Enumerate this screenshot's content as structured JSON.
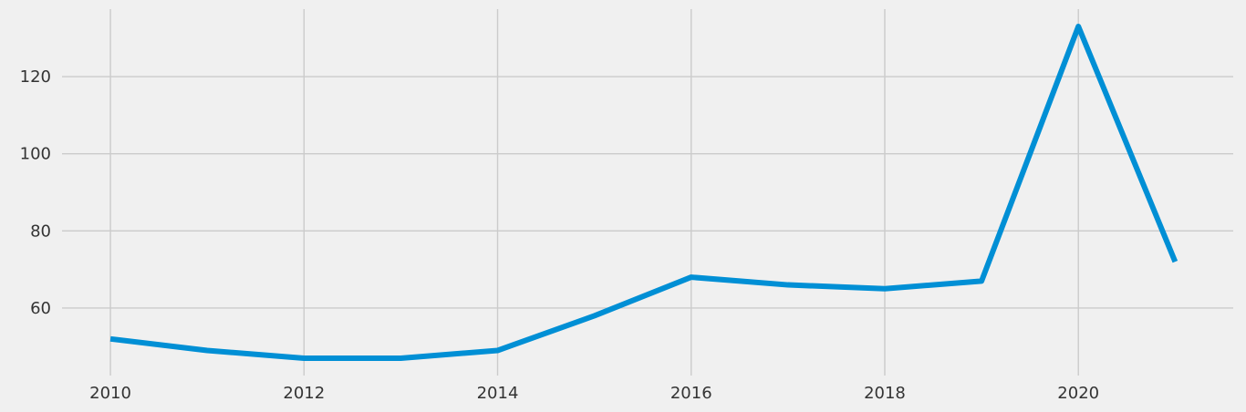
{
  "colors": {
    "background": "#f0f0f0",
    "grid": "#cbcbcb",
    "series": "#008fd5",
    "text": "#333333"
  },
  "chart_data": {
    "type": "line",
    "title": "",
    "xlabel": "",
    "ylabel": "",
    "x": [
      2010,
      2011,
      2012,
      2013,
      2014,
      2015,
      2016,
      2017,
      2018,
      2019,
      2020,
      2021
    ],
    "series": [
      {
        "values": [
          52,
          49,
          47,
          47,
          49,
          58,
          68,
          66,
          65,
          67,
          133,
          72
        ]
      }
    ],
    "xlim": [
      2009.5,
      2021.6
    ],
    "ylim": [
      42.5,
      137.5
    ],
    "x_ticks": [
      2010,
      2012,
      2014,
      2016,
      2018,
      2020
    ],
    "x_tick_labels": [
      "2010",
      "2012",
      "2014",
      "2016",
      "2018",
      "2020"
    ],
    "y_ticks": [
      60,
      80,
      100,
      120
    ],
    "y_tick_labels": [
      "60",
      "80",
      "100",
      "120"
    ],
    "grid": true,
    "legend": "none"
  }
}
